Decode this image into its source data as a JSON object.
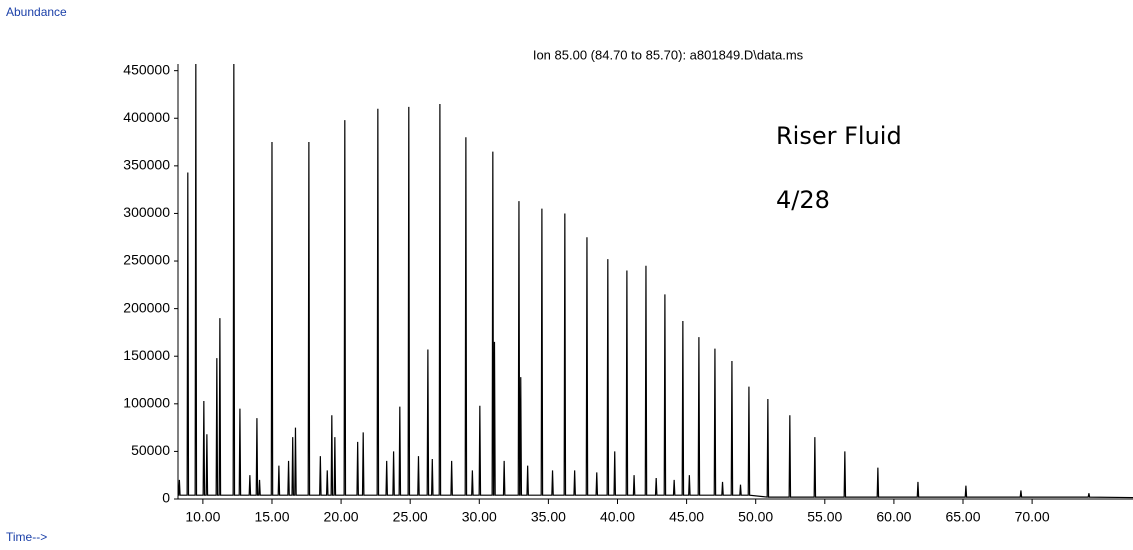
{
  "chart_data": {
    "type": "line",
    "y_axis_label": "Abundance",
    "x_axis_label": "Time-->",
    "title": "Ion 85.00 (84.70 to 85.70): a801849.D\\data.ms",
    "annotations": [
      "Riser Fluid",
      "4/28"
    ],
    "color": "#000000",
    "xlim": [
      8.2,
      77.3
    ],
    "ylim": [
      0,
      457000
    ],
    "xticks": [
      {
        "value": 10,
        "label": "10.00"
      },
      {
        "value": 15,
        "label": "15.00"
      },
      {
        "value": 20,
        "label": "20.00"
      },
      {
        "value": 25,
        "label": "25.00"
      },
      {
        "value": 30,
        "label": "30.00"
      },
      {
        "value": 35,
        "label": "35.00"
      },
      {
        "value": 40,
        "label": "40.00"
      },
      {
        "value": 45,
        "label": "45.00"
      },
      {
        "value": 50,
        "label": "50.00"
      },
      {
        "value": 55,
        "label": "55.00"
      },
      {
        "value": 60,
        "label": "60.00"
      },
      {
        "value": 65,
        "label": "65.00"
      },
      {
        "value": 70,
        "label": "70.00"
      }
    ],
    "yticks": [
      0,
      50000,
      100000,
      150000,
      200000,
      250000,
      300000,
      350000,
      400000,
      450000
    ],
    "x": [
      8.2,
      8.25,
      8.3,
      8.35,
      8.86,
      8.91,
      8.96,
      9.44,
      9.49,
      9.54,
      10.02,
      10.07,
      10.12,
      10.24,
      10.29,
      10.34,
      10.96,
      11.01,
      11.06,
      11.18,
      11.23,
      11.28,
      12.19,
      12.24,
      12.29,
      12.63,
      12.68,
      12.73,
      13.35,
      13.4,
      13.45,
      13.86,
      13.91,
      13.96,
      14.05,
      14.1,
      14.15,
      14.95,
      15.0,
      15.05,
      15.45,
      15.5,
      15.55,
      16.15,
      16.2,
      16.25,
      16.45,
      16.5,
      16.55,
      16.65,
      16.7,
      16.75,
      17.62,
      17.67,
      17.72,
      18.45,
      18.5,
      18.55,
      18.95,
      19.0,
      19.05,
      19.28,
      19.33,
      19.38,
      19.5,
      19.55,
      19.6,
      20.22,
      20.27,
      20.32,
      21.15,
      21.2,
      21.25,
      21.55,
      21.6,
      21.65,
      22.61,
      22.66,
      22.71,
      23.25,
      23.3,
      23.35,
      23.75,
      23.8,
      23.85,
      24.2,
      24.25,
      24.3,
      24.85,
      24.9,
      24.95,
      25.55,
      25.6,
      25.65,
      26.23,
      26.28,
      26.33,
      26.55,
      26.6,
      26.65,
      27.1,
      27.15,
      27.2,
      27.95,
      28.0,
      28.05,
      28.98,
      29.03,
      29.08,
      29.45,
      29.5,
      29.55,
      29.99,
      30.04,
      30.09,
      30.93,
      30.98,
      31.03,
      31.05,
      31.1,
      31.15,
      31.75,
      31.8,
      31.85,
      32.82,
      32.87,
      32.92,
      32.95,
      33.0,
      33.05,
      33.45,
      33.5,
      33.55,
      34.48,
      34.53,
      34.58,
      35.25,
      35.3,
      35.35,
      36.14,
      36.19,
      36.24,
      36.85,
      36.9,
      36.95,
      37.74,
      37.79,
      37.84,
      38.45,
      38.5,
      38.55,
      39.25,
      39.3,
      39.35,
      39.75,
      39.8,
      39.85,
      40.63,
      40.68,
      40.73,
      41.15,
      41.2,
      41.25,
      42.01,
      42.06,
      42.11,
      42.75,
      42.8,
      42.85,
      43.38,
      43.43,
      43.48,
      44.05,
      44.1,
      44.15,
      44.68,
      44.73,
      44.78,
      45.15,
      45.2,
      45.25,
      45.84,
      45.89,
      45.94,
      47.0,
      47.05,
      47.1,
      47.55,
      47.6,
      47.65,
      48.23,
      48.28,
      48.33,
      48.85,
      48.9,
      48.95,
      49.46,
      49.51,
      49.56,
      50.83,
      50.88,
      50.93,
      52.42,
      52.47,
      52.52,
      54.23,
      54.28,
      54.33,
      56.4,
      56.45,
      56.5,
      58.79,
      58.84,
      58.89,
      61.69,
      61.74,
      61.79,
      65.16,
      65.21,
      65.26,
      69.14,
      69.19,
      69.24,
      74.06,
      74.11,
      74.16,
      77.3
    ],
    "values": [
      4000,
      4000,
      20000,
      4000,
      4000,
      343000,
      4000,
      4000,
      457000,
      4000,
      4000,
      103000,
      4000,
      4000,
      68000,
      4000,
      4000,
      148000,
      4000,
      4000,
      190000,
      4000,
      4000,
      457000,
      4000,
      4000,
      95000,
      4000,
      4000,
      25000,
      4000,
      4000,
      85000,
      4000,
      4000,
      20000,
      4000,
      4000,
      375000,
      4000,
      4000,
      35000,
      4000,
      4000,
      40000,
      4000,
      4000,
      65000,
      4000,
      4000,
      75000,
      4000,
      4000,
      375000,
      4000,
      4000,
      45000,
      4000,
      4000,
      30000,
      4000,
      4000,
      88000,
      4000,
      4000,
      65000,
      4000,
      4000,
      398000,
      4000,
      4000,
      60000,
      4000,
      4000,
      70000,
      4000,
      4000,
      410000,
      4000,
      4000,
      40000,
      4000,
      4000,
      50000,
      4000,
      4000,
      97000,
      4000,
      4000,
      412000,
      4000,
      4000,
      45000,
      4000,
      4000,
      157000,
      4000,
      4000,
      42000,
      4000,
      4000,
      415000,
      4000,
      4000,
      40000,
      4000,
      4000,
      380000,
      4000,
      4000,
      30000,
      4000,
      4000,
      98000,
      4000,
      4000,
      365000,
      4000,
      4000,
      165000,
      4000,
      4000,
      40000,
      4000,
      4000,
      313000,
      4000,
      4000,
      128000,
      4000,
      4000,
      35000,
      4000,
      4000,
      305000,
      4000,
      4000,
      30000,
      4000,
      4000,
      300000,
      4000,
      4000,
      30000,
      4000,
      4000,
      275000,
      4000,
      4000,
      28000,
      4000,
      4000,
      252000,
      4000,
      4000,
      50000,
      4000,
      4000,
      240000,
      4000,
      4000,
      25000,
      4000,
      4000,
      245000,
      4000,
      4000,
      22000,
      4000,
      4000,
      215000,
      4000,
      4000,
      20000,
      4000,
      4000,
      187000,
      4000,
      4000,
      25000,
      4000,
      4000,
      170000,
      4000,
      4000,
      158000,
      4000,
      4000,
      18000,
      4000,
      4000,
      145000,
      4000,
      4000,
      15000,
      4000,
      4000,
      118000,
      4000,
      2000,
      105000,
      2000,
      2000,
      88000,
      2000,
      2000,
      65000,
      2000,
      2000,
      50000,
      2000,
      2000,
      33000,
      2000,
      2000,
      18000,
      2000,
      2000,
      14000,
      2000,
      2000,
      9000,
      2000,
      2000,
      6000,
      2000,
      1500
    ]
  }
}
